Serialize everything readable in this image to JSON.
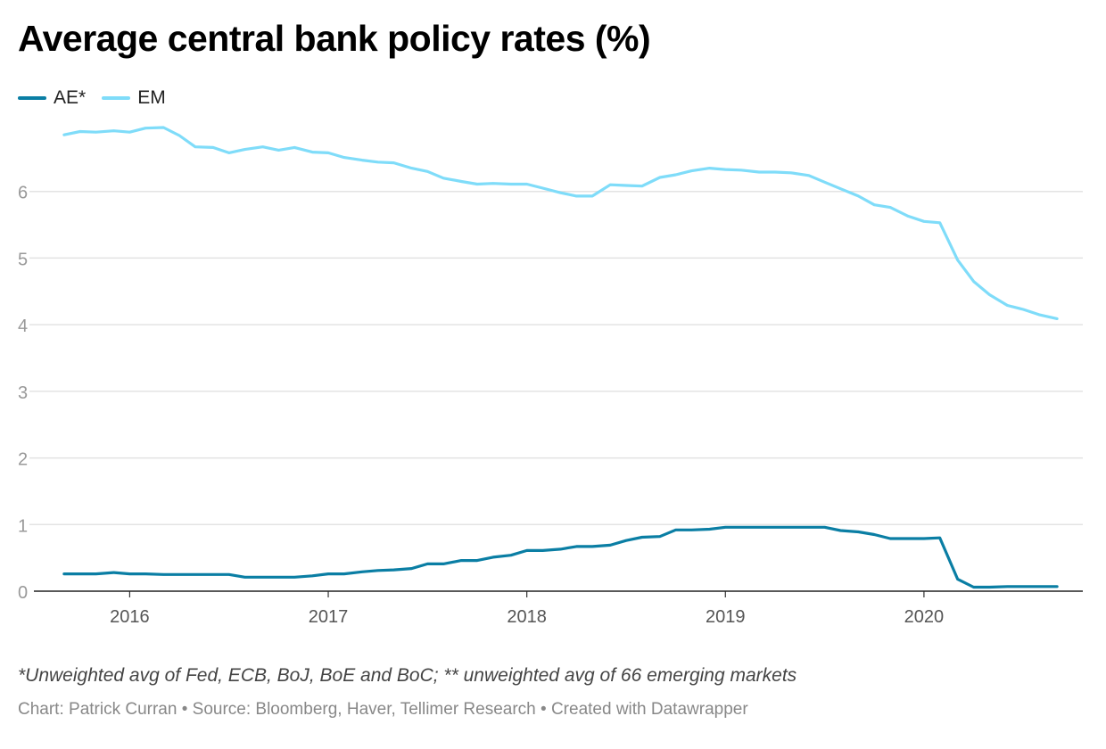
{
  "chart_data": {
    "type": "line",
    "title": "Average central bank policy rates (%)",
    "xlabel": "",
    "ylabel": "",
    "ylim": [
      0,
      7
    ],
    "y_ticks": [
      "0",
      "1",
      "2",
      "3",
      "4",
      "5",
      "6"
    ],
    "x_ticks": [
      "2016",
      "2017",
      "2018",
      "2019",
      "2020"
    ],
    "x_tick_values": [
      2016.0,
      2017.0,
      2018.0,
      2019.0,
      2020.0
    ],
    "xlim": [
      2015.54,
      2020.8
    ],
    "grid": true,
    "legend_position": "top-left",
    "x": [
      2015.67,
      2015.75,
      2015.83,
      2015.92,
      2016.0,
      2016.08,
      2016.17,
      2016.25,
      2016.33,
      2016.42,
      2016.5,
      2016.58,
      2016.67,
      2016.75,
      2016.83,
      2016.92,
      2017.0,
      2017.08,
      2017.17,
      2017.25,
      2017.33,
      2017.42,
      2017.5,
      2017.58,
      2017.67,
      2017.75,
      2017.83,
      2017.92,
      2018.0,
      2018.08,
      2018.17,
      2018.25,
      2018.33,
      2018.42,
      2018.5,
      2018.58,
      2018.67,
      2018.75,
      2018.83,
      2018.92,
      2019.0,
      2019.08,
      2019.17,
      2019.25,
      2019.33,
      2019.42,
      2019.5,
      2019.58,
      2019.67,
      2019.75,
      2019.83,
      2019.92,
      2020.0,
      2020.08,
      2020.17,
      2020.25,
      2020.33,
      2020.42,
      2020.5,
      2020.58,
      2020.67
    ],
    "series": [
      {
        "name": "AE*",
        "color": "#0a7ea4",
        "values": [
          0.26,
          0.26,
          0.26,
          0.28,
          0.26,
          0.26,
          0.25,
          0.25,
          0.25,
          0.25,
          0.25,
          0.21,
          0.21,
          0.21,
          0.21,
          0.23,
          0.26,
          0.26,
          0.29,
          0.31,
          0.32,
          0.34,
          0.41,
          0.41,
          0.46,
          0.46,
          0.51,
          0.54,
          0.61,
          0.61,
          0.63,
          0.67,
          0.67,
          0.69,
          0.76,
          0.81,
          0.82,
          0.92,
          0.92,
          0.93,
          0.96,
          0.96,
          0.96,
          0.96,
          0.96,
          0.96,
          0.96,
          0.91,
          0.89,
          0.85,
          0.79,
          0.79,
          0.79,
          0.8,
          0.18,
          0.06,
          0.06,
          0.07,
          0.07,
          0.07,
          0.07
        ]
      },
      {
        "name": "EM",
        "color": "#7fdcf9",
        "values": [
          6.85,
          6.9,
          6.89,
          6.91,
          6.89,
          6.95,
          6.96,
          6.84,
          6.67,
          6.66,
          6.58,
          6.63,
          6.67,
          6.62,
          6.66,
          6.59,
          6.58,
          6.51,
          6.47,
          6.44,
          6.43,
          6.35,
          6.3,
          6.2,
          6.15,
          6.11,
          6.12,
          6.11,
          6.11,
          6.05,
          5.98,
          5.93,
          5.93,
          6.1,
          6.09,
          6.08,
          6.21,
          6.25,
          6.31,
          6.35,
          6.33,
          6.32,
          6.29,
          6.29,
          6.28,
          6.24,
          6.14,
          6.04,
          5.93,
          5.8,
          5.76,
          5.63,
          5.55,
          5.53,
          4.97,
          4.65,
          4.45,
          4.29,
          4.23,
          4.15,
          4.09
        ]
      }
    ],
    "note": "*Unweighted avg of Fed, ECB, BoJ, BoE and BoC; ** unweighted avg of 66 emerging markets",
    "credit": "Chart: Patrick Curran • Source: Bloomberg, Haver, Tellimer Research • Created with Datawrapper"
  }
}
